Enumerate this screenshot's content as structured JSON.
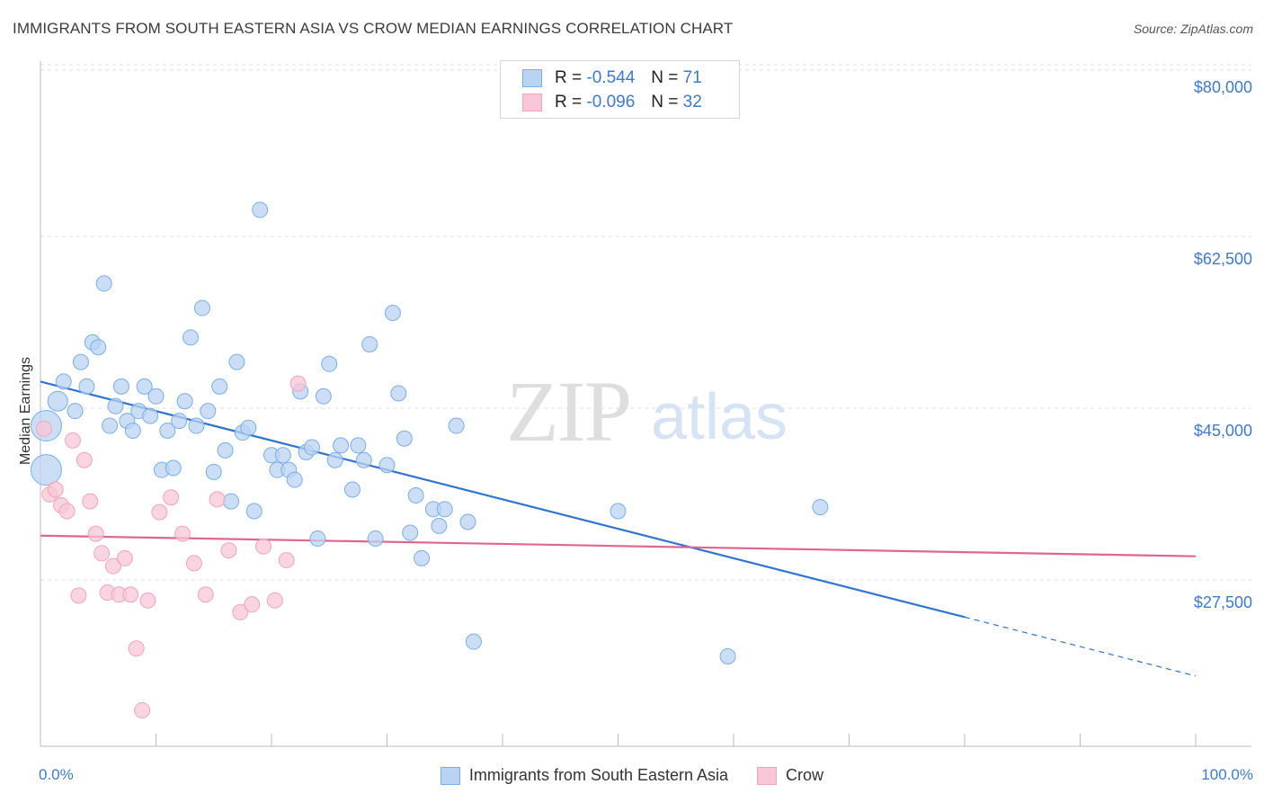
{
  "title": "IMMIGRANTS FROM SOUTH EASTERN ASIA VS CROW MEDIAN EARNINGS CORRELATION CHART",
  "source": "Source: ZipAtlas.com",
  "watermark": {
    "zip": "ZIP",
    "atlas": "atlas"
  },
  "legend": {
    "r_label": "R =",
    "n_label": "N =",
    "series": [
      {
        "r": "-0.544",
        "n": "71"
      },
      {
        "r": "-0.096",
        "n": "32"
      }
    ]
  },
  "chart_data": {
    "type": "scatter",
    "title": "IMMIGRANTS FROM SOUTH EASTERN ASIA VS CROW MEDIAN EARNINGS CORRELATION CHART",
    "xlabel": "",
    "ylabel": "Median Earnings",
    "xlim": [
      0,
      100
    ],
    "ylim": [
      10000,
      84000
    ],
    "x_tick_labels": [
      "0.0%",
      "100.0%"
    ],
    "y_ticks": [
      {
        "value": 80000,
        "label": "$80,000"
      },
      {
        "value": 62500,
        "label": "$62,500"
      },
      {
        "value": 45000,
        "label": "$45,000"
      },
      {
        "value": 27500,
        "label": "$27,500"
      }
    ],
    "grid": true,
    "legend_position": "bottom",
    "series": [
      {
        "name": "Immigrants from South Eastern Asia",
        "color": "#7aaee8",
        "fill": "#b9d3f3",
        "trend": {
          "x0": 0,
          "y0": 50000,
          "x1": 80,
          "y1": 26000,
          "dash_to_x": 100,
          "dash_to_y": 20000,
          "color": "#2f74d0"
        },
        "points": [
          [
            0.5,
            45500,
            3
          ],
          [
            0.5,
            41000,
            3
          ],
          [
            1.5,
            48000,
            2
          ],
          [
            2.0,
            50000,
            1
          ],
          [
            3.0,
            47000,
            1
          ],
          [
            3.5,
            52000,
            1
          ],
          [
            4.0,
            49500,
            1
          ],
          [
            4.5,
            54000,
            1
          ],
          [
            5.0,
            53500,
            1
          ],
          [
            5.5,
            60000,
            1
          ],
          [
            6.0,
            45500,
            1
          ],
          [
            6.5,
            47500,
            1
          ],
          [
            7.0,
            49500,
            1
          ],
          [
            7.5,
            46000,
            1
          ],
          [
            8.0,
            45000,
            1
          ],
          [
            8.5,
            47000,
            1
          ],
          [
            9.0,
            49500,
            1
          ],
          [
            9.5,
            46500,
            1
          ],
          [
            10.0,
            48500,
            1
          ],
          [
            10.5,
            41000,
            1
          ],
          [
            11.0,
            45000,
            1
          ],
          [
            11.5,
            41200,
            1
          ],
          [
            12.0,
            46000,
            1
          ],
          [
            12.5,
            48000,
            1
          ],
          [
            13.0,
            54500,
            1
          ],
          [
            13.5,
            45500,
            1
          ],
          [
            14.0,
            57500,
            1
          ],
          [
            14.5,
            47000,
            1
          ],
          [
            15.0,
            40800,
            1
          ],
          [
            15.5,
            49500,
            1
          ],
          [
            16.0,
            43000,
            1
          ],
          [
            16.5,
            37800,
            1
          ],
          [
            17.0,
            52000,
            1
          ],
          [
            17.5,
            44800,
            1
          ],
          [
            18.0,
            45300,
            1
          ],
          [
            18.5,
            36800,
            1
          ],
          [
            19.0,
            67500,
            1
          ],
          [
            20.0,
            42500,
            1
          ],
          [
            20.5,
            41000,
            1
          ],
          [
            21.0,
            42500,
            1
          ],
          [
            21.5,
            41000,
            1
          ],
          [
            22.0,
            40000,
            1
          ],
          [
            22.5,
            49000,
            1
          ],
          [
            23.0,
            42800,
            1
          ],
          [
            23.5,
            43300,
            1
          ],
          [
            24.0,
            34000,
            1
          ],
          [
            24.5,
            48500,
            1
          ],
          [
            25.0,
            51800,
            1
          ],
          [
            25.5,
            42000,
            1
          ],
          [
            26.0,
            43500,
            1
          ],
          [
            27.0,
            39000,
            1
          ],
          [
            27.5,
            43500,
            1
          ],
          [
            28.0,
            42000,
            1
          ],
          [
            28.5,
            53800,
            1
          ],
          [
            29.0,
            34000,
            1
          ],
          [
            30.0,
            41500,
            1
          ],
          [
            30.5,
            57000,
            1
          ],
          [
            31.0,
            48800,
            1
          ],
          [
            31.5,
            44200,
            1
          ],
          [
            32.0,
            34600,
            1
          ],
          [
            32.5,
            38400,
            1
          ],
          [
            33.0,
            32000,
            1
          ],
          [
            34.0,
            37000,
            1
          ],
          [
            34.5,
            35300,
            1
          ],
          [
            35.0,
            37000,
            1
          ],
          [
            36.0,
            45500,
            1
          ],
          [
            37.0,
            35700,
            1
          ],
          [
            37.5,
            23500,
            1
          ],
          [
            50.0,
            36800,
            1
          ],
          [
            59.5,
            22000,
            1
          ],
          [
            67.5,
            37200,
            1
          ]
        ]
      },
      {
        "name": "Crow",
        "color": "#f0a5bd",
        "fill": "#f8c6d6",
        "trend": {
          "x0": 0,
          "y0": 34300,
          "x1": 100,
          "y1": 32200,
          "color": "#e0668e"
        },
        "points": [
          [
            0.3,
            45200
          ],
          [
            0.8,
            38500
          ],
          [
            1.3,
            39000
          ],
          [
            1.8,
            37400
          ],
          [
            2.3,
            36800
          ],
          [
            2.8,
            44000
          ],
          [
            3.3,
            28200
          ],
          [
            3.8,
            42000
          ],
          [
            4.3,
            37800
          ],
          [
            4.8,
            34500
          ],
          [
            5.3,
            32500
          ],
          [
            5.8,
            28500
          ],
          [
            6.3,
            31200
          ],
          [
            6.8,
            28300
          ],
          [
            7.3,
            32000
          ],
          [
            7.8,
            28300
          ],
          [
            8.3,
            22800
          ],
          [
            8.8,
            16500
          ],
          [
            9.3,
            27700
          ],
          [
            10.3,
            36700
          ],
          [
            11.3,
            38200
          ],
          [
            12.3,
            34500
          ],
          [
            13.3,
            31500
          ],
          [
            14.3,
            28300
          ],
          [
            15.3,
            38000
          ],
          [
            16.3,
            32800
          ],
          [
            17.3,
            26500
          ],
          [
            18.3,
            27300
          ],
          [
            19.3,
            33200
          ],
          [
            20.3,
            27700
          ],
          [
            21.3,
            31800
          ],
          [
            22.3,
            49800
          ]
        ]
      }
    ]
  },
  "bottom_legend": [
    "Immigrants from South Eastern Asia",
    "Crow"
  ]
}
